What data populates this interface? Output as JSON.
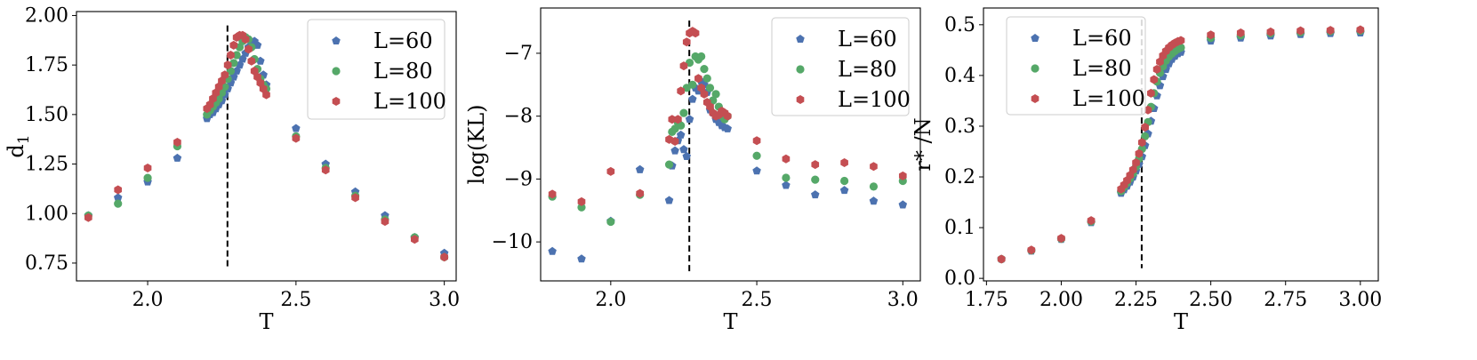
{
  "chart_data": [
    {
      "type": "scatter",
      "xlabel": "T",
      "ylabel": "d",
      "ylabel_sub": "1",
      "xlim": [
        1.76,
        3.04
      ],
      "ylim": [
        0.66,
        2.02
      ],
      "xticks": [
        2.0,
        2.5,
        3.0
      ],
      "xtick_labels": [
        "2.0",
        "2.5",
        "3.0"
      ],
      "yticks": [
        0.75,
        1.0,
        1.25,
        1.5,
        1.75,
        2.0
      ],
      "ytick_labels": [
        "0.75",
        "1.00",
        "1.25",
        "1.50",
        "1.75",
        "2.00"
      ],
      "critical_line": {
        "x": 2.269,
        "y_range": [
          0.72,
          1.95
        ]
      },
      "legend_position": "top-right",
      "grid": false,
      "series": [
        {
          "name": "L=60",
          "color": "#4c72b0",
          "marker": "pentagon",
          "x": [
            1.8,
            1.9,
            2.0,
            2.1,
            2.2,
            2.21,
            2.22,
            2.23,
            2.24,
            2.25,
            2.26,
            2.27,
            2.28,
            2.29,
            2.3,
            2.31,
            2.32,
            2.33,
            2.34,
            2.35,
            2.36,
            2.37,
            2.38,
            2.39,
            2.4,
            2.5,
            2.6,
            2.7,
            2.8,
            2.9,
            3.0
          ],
          "y": [
            0.99,
            1.08,
            1.16,
            1.28,
            1.48,
            1.5,
            1.51,
            1.53,
            1.55,
            1.57,
            1.6,
            1.63,
            1.66,
            1.69,
            1.72,
            1.75,
            1.78,
            1.81,
            1.84,
            1.86,
            1.87,
            1.85,
            1.77,
            1.7,
            1.65,
            1.43,
            1.25,
            1.11,
            0.99,
            0.88,
            0.8
          ]
        },
        {
          "name": "L=80",
          "color": "#55a868",
          "marker": "circle",
          "x": [
            1.8,
            1.9,
            2.0,
            2.1,
            2.2,
            2.21,
            2.22,
            2.23,
            2.24,
            2.25,
            2.26,
            2.27,
            2.28,
            2.29,
            2.3,
            2.31,
            2.32,
            2.33,
            2.34,
            2.35,
            2.36,
            2.37,
            2.38,
            2.39,
            2.4,
            2.5,
            2.6,
            2.7,
            2.8,
            2.9,
            3.0
          ],
          "y": [
            0.99,
            1.05,
            1.18,
            1.34,
            1.5,
            1.52,
            1.54,
            1.56,
            1.58,
            1.61,
            1.64,
            1.68,
            1.72,
            1.76,
            1.8,
            1.84,
            1.87,
            1.89,
            1.88,
            1.84,
            1.78,
            1.73,
            1.68,
            1.65,
            1.63,
            1.39,
            1.23,
            1.09,
            0.97,
            0.88,
            0.78
          ]
        },
        {
          "name": "L=100",
          "color": "#c44e52",
          "marker": "hexagon",
          "x": [
            1.8,
            1.9,
            2.0,
            2.1,
            2.2,
            2.21,
            2.22,
            2.23,
            2.24,
            2.25,
            2.26,
            2.27,
            2.28,
            2.29,
            2.3,
            2.31,
            2.32,
            2.33,
            2.34,
            2.35,
            2.36,
            2.37,
            2.38,
            2.39,
            2.4,
            2.5,
            2.6,
            2.7,
            2.8,
            2.9,
            3.0
          ],
          "y": [
            0.98,
            1.12,
            1.23,
            1.36,
            1.53,
            1.55,
            1.58,
            1.61,
            1.64,
            1.67,
            1.7,
            1.75,
            1.8,
            1.85,
            1.89,
            1.9,
            1.9,
            1.88,
            1.83,
            1.77,
            1.72,
            1.69,
            1.66,
            1.63,
            1.6,
            1.38,
            1.22,
            1.08,
            0.96,
            0.87,
            0.78
          ]
        }
      ]
    },
    {
      "type": "scatter",
      "xlabel": "T",
      "ylabel": "log(KL)",
      "xlim": [
        1.76,
        3.06
      ],
      "ylim": [
        -10.62,
        -6.28
      ],
      "xticks": [
        2.0,
        2.5,
        3.0
      ],
      "xtick_labels": [
        "2.0",
        "2.5",
        "3.0"
      ],
      "yticks": [
        -10,
        -9,
        -8,
        -7
      ],
      "ytick_labels": [
        "−10",
        "−9",
        "−8",
        "−7"
      ],
      "critical_line": {
        "x": 2.269,
        "y_range": [
          -10.47,
          -6.48
        ]
      },
      "legend_position": "top-right",
      "grid": false,
      "series": [
        {
          "name": "L=60",
          "color": "#4c72b0",
          "marker": "pentagon",
          "x": [
            1.8,
            1.9,
            2.0,
            2.1,
            2.2,
            2.21,
            2.22,
            2.23,
            2.24,
            2.25,
            2.26,
            2.27,
            2.28,
            2.29,
            2.3,
            2.31,
            2.32,
            2.33,
            2.34,
            2.35,
            2.36,
            2.37,
            2.38,
            2.39,
            2.4,
            2.5,
            2.6,
            2.7,
            2.8,
            2.9,
            3.0
          ],
          "y": [
            -10.15,
            -10.27,
            -9.67,
            -8.85,
            -9.34,
            -8.79,
            -8.55,
            -8.39,
            -8.3,
            -8.53,
            -8.64,
            -8.05,
            -7.73,
            -7.55,
            -7.6,
            -7.45,
            -7.5,
            -7.62,
            -7.9,
            -7.95,
            -8.05,
            -8.1,
            -8.15,
            -8.18,
            -8.2,
            -8.87,
            -9.1,
            -9.25,
            -9.18,
            -9.35,
            -9.41
          ]
        },
        {
          "name": "L=80",
          "color": "#55a868",
          "marker": "circle",
          "x": [
            1.8,
            1.9,
            2.0,
            2.1,
            2.2,
            2.21,
            2.22,
            2.23,
            2.24,
            2.25,
            2.26,
            2.27,
            2.28,
            2.29,
            2.3,
            2.31,
            2.32,
            2.33,
            2.34,
            2.35,
            2.36,
            2.37,
            2.38,
            2.39,
            2.4,
            2.5,
            2.6,
            2.7,
            2.8,
            2.9,
            3.0
          ],
          "y": [
            -9.28,
            -9.45,
            -9.68,
            -9.25,
            -8.77,
            -8.25,
            -8.2,
            -8.1,
            -8.15,
            -7.95,
            -7.55,
            -7.15,
            -7.5,
            -7.05,
            -7.1,
            -7.05,
            -7.25,
            -7.4,
            -7.55,
            -7.75,
            -7.65,
            -7.85,
            -8.0,
            -8.05,
            -8.0,
            -8.63,
            -8.98,
            -9.01,
            -9.03,
            -9.12,
            -9.03
          ]
        },
        {
          "name": "L=100",
          "color": "#c44e52",
          "marker": "hexagon",
          "x": [
            1.8,
            1.9,
            2.0,
            2.1,
            2.2,
            2.21,
            2.22,
            2.23,
            2.24,
            2.25,
            2.26,
            2.27,
            2.28,
            2.29,
            2.3,
            2.31,
            2.32,
            2.33,
            2.34,
            2.35,
            2.36,
            2.37,
            2.38,
            2.39,
            2.4,
            2.5,
            2.6,
            2.7,
            2.8,
            2.9,
            3.0
          ],
          "y": [
            -9.24,
            -9.36,
            -8.88,
            -9.23,
            -8.37,
            -8.05,
            -8.4,
            -8.05,
            -7.6,
            -7.2,
            -6.82,
            -6.68,
            -6.65,
            -6.68,
            -7.4,
            -7.55,
            -7.65,
            -7.78,
            -7.85,
            -7.95,
            -8.0,
            -7.98,
            -7.92,
            -7.95,
            -8.0,
            -8.39,
            -8.68,
            -8.77,
            -8.74,
            -8.8,
            -8.95
          ]
        }
      ]
    },
    {
      "type": "scatter",
      "xlabel": "T",
      "ylabel": "r* /N",
      "xlim": [
        1.74,
        3.06
      ],
      "ylim": [
        -0.005,
        0.533
      ],
      "xticks": [
        1.75,
        2.0,
        2.25,
        2.5,
        2.75,
        3.0
      ],
      "xtick_labels": [
        "1.75",
        "2.00",
        "2.25",
        "2.50",
        "2.75",
        "3.00"
      ],
      "yticks": [
        0.0,
        0.1,
        0.2,
        0.3,
        0.4,
        0.5
      ],
      "ytick_labels": [
        "0.0",
        "0.1",
        "0.2",
        "0.3",
        "0.4",
        "0.5"
      ],
      "critical_line": {
        "x": 2.269,
        "y_range": [
          0.02,
          0.51
        ]
      },
      "legend_position": "top-left",
      "grid": false,
      "series": [
        {
          "name": "L=60",
          "color": "#4c72b0",
          "marker": "pentagon",
          "x": [
            1.8,
            1.9,
            2.0,
            2.1,
            2.2,
            2.21,
            2.22,
            2.23,
            2.24,
            2.25,
            2.26,
            2.27,
            2.28,
            2.29,
            2.3,
            2.31,
            2.32,
            2.33,
            2.34,
            2.35,
            2.36,
            2.37,
            2.38,
            2.39,
            2.4,
            2.5,
            2.6,
            2.7,
            2.8,
            2.9,
            3.0
          ],
          "y": [
            0.038,
            0.054,
            0.077,
            0.11,
            0.168,
            0.175,
            0.182,
            0.19,
            0.2,
            0.212,
            0.225,
            0.24,
            0.262,
            0.285,
            0.31,
            0.335,
            0.36,
            0.38,
            0.398,
            0.412,
            0.423,
            0.432,
            0.438,
            0.443,
            0.446,
            0.468,
            0.474,
            0.478,
            0.481,
            0.483,
            0.484
          ]
        },
        {
          "name": "L=80",
          "color": "#55a868",
          "marker": "circle",
          "x": [
            1.8,
            1.9,
            2.0,
            2.1,
            2.2,
            2.21,
            2.22,
            2.23,
            2.24,
            2.25,
            2.26,
            2.27,
            2.28,
            2.29,
            2.3,
            2.31,
            2.32,
            2.33,
            2.34,
            2.35,
            2.36,
            2.37,
            2.38,
            2.39,
            2.4,
            2.5,
            2.6,
            2.7,
            2.8,
            2.9,
            3.0
          ],
          "y": [
            0.038,
            0.055,
            0.078,
            0.112,
            0.172,
            0.18,
            0.188,
            0.197,
            0.207,
            0.22,
            0.236,
            0.255,
            0.28,
            0.308,
            0.338,
            0.365,
            0.388,
            0.405,
            0.418,
            0.429,
            0.437,
            0.443,
            0.448,
            0.452,
            0.455,
            0.474,
            0.479,
            0.483,
            0.485,
            0.487,
            0.488
          ]
        },
        {
          "name": "L=100",
          "color": "#c44e52",
          "marker": "hexagon",
          "x": [
            1.8,
            1.9,
            2.0,
            2.1,
            2.2,
            2.21,
            2.22,
            2.23,
            2.24,
            2.25,
            2.26,
            2.27,
            2.28,
            2.29,
            2.3,
            2.31,
            2.32,
            2.33,
            2.34,
            2.35,
            2.36,
            2.37,
            2.38,
            2.39,
            2.4,
            2.5,
            2.6,
            2.7,
            2.8,
            2.9,
            3.0
          ],
          "y": [
            0.038,
            0.056,
            0.079,
            0.114,
            0.176,
            0.184,
            0.193,
            0.203,
            0.214,
            0.228,
            0.246,
            0.268,
            0.298,
            0.332,
            0.365,
            0.392,
            0.412,
            0.427,
            0.439,
            0.448,
            0.455,
            0.46,
            0.464,
            0.467,
            0.469,
            0.48,
            0.484,
            0.486,
            0.488,
            0.489,
            0.49
          ]
        }
      ]
    }
  ]
}
